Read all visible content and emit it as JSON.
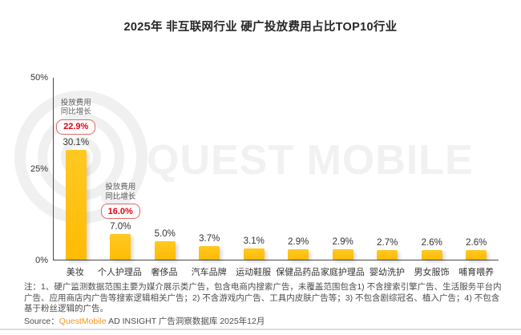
{
  "title": "2025年 非互联网行业 硬广投放费用占比TOP10行业",
  "watermark": {
    "text": "QUEST MOBILE"
  },
  "chart_data": {
    "type": "bar",
    "title": "2025年 非互联网行业 硬广投放费用占比TOP10行业",
    "categories": [
      "美妆",
      "个人护理品",
      "奢侈品",
      "汽车品牌",
      "运动鞋服",
      "保健品药品",
      "家庭护理品",
      "婴幼洗护",
      "男女服饰",
      "哺育喂养"
    ],
    "values": [
      30.1,
      7.0,
      5.0,
      3.7,
      3.1,
      2.9,
      2.9,
      2.7,
      2.6,
      2.6
    ],
    "value_labels": [
      "30.1%",
      "7.0%",
      "5.0%",
      "3.7%",
      "3.1%",
      "2.9%",
      "2.9%",
      "2.7%",
      "2.6%",
      "2.6%"
    ],
    "xlabel": "",
    "ylabel": "",
    "ylim": [
      0,
      50
    ],
    "yticks": [
      "50%",
      "25%",
      "0%"
    ],
    "grid": false,
    "legend": null,
    "bar_color": "#FFC110",
    "annotations": [
      {
        "bar_index": 0,
        "line1": "投放费用",
        "line2": "同比增长",
        "value": "22.9%"
      },
      {
        "bar_index": 1,
        "line1": "投放费用",
        "line2": "同比增长",
        "value": "16.0%"
      }
    ]
  },
  "footer": {
    "note": "注：1、硬广监测数据范围主要为媒介展示类广告，包含电商内搜索广告，未覆盖范围包含1) 不含搜索引擎广告、生活服务平台内广告、应用商店内广告等搜索逻辑相关广告；2) 不含游戏内广告、工具内皮肤广告等；3) 不包含剧综冠名、植入广告；4) 不包含基于粉丝逻辑的广告。",
    "source_prefix": "Source：",
    "source_brand": "QuestMobile",
    "source_suffix": " AD INSIGHT 广告洞察数据库 2025年12月"
  },
  "colors": {
    "bar": "#FFC110",
    "accent_red": "#E60012",
    "annotation_border": "#E06A60",
    "brand_orange": "#F7941D",
    "axis": "#4A4A4A",
    "watermark": "#F1F1F1"
  }
}
